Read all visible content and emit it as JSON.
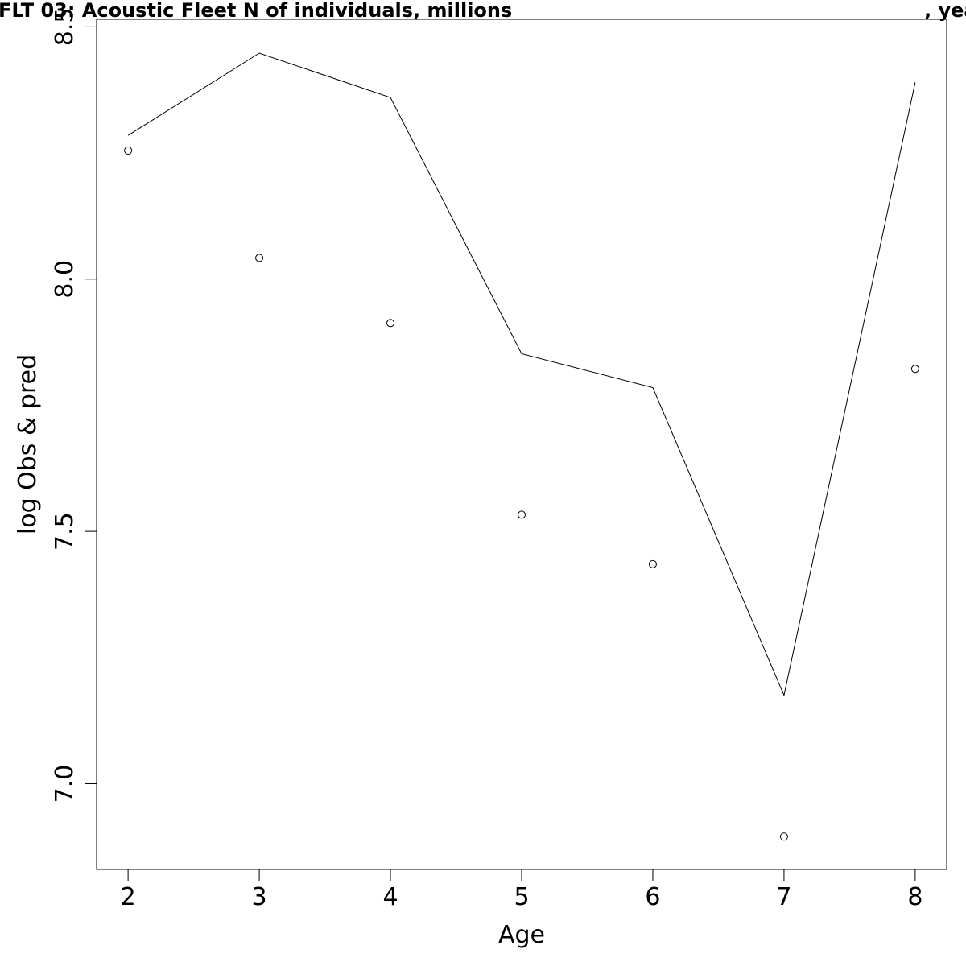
{
  "chart_data": {
    "type": "line",
    "title_left": "FLT 03: Acoustic Fleet   N of individuals, millions",
    "title_right": ", yea",
    "xlabel": "Age",
    "ylabel": "log Obs & pred",
    "x": [
      2,
      3,
      4,
      5,
      6,
      7,
      8
    ],
    "x_ticks": [
      "2",
      "3",
      "4",
      "5",
      "6",
      "7",
      "8"
    ],
    "y_ticks": [
      "7.0",
      "7.5",
      "8.0",
      "8.5"
    ],
    "xlim": [
      1.76,
      8.24
    ],
    "ylim": [
      6.83,
      8.515
    ],
    "grid": false,
    "series": [
      {
        "style": "line",
        "values": [
          8.285,
          8.448,
          8.36,
          7.852,
          7.785,
          7.175,
          8.39
        ]
      },
      {
        "style": "points",
        "values": [
          8.255,
          8.042,
          7.913,
          7.533,
          7.435,
          6.895,
          7.822
        ]
      }
    ]
  }
}
